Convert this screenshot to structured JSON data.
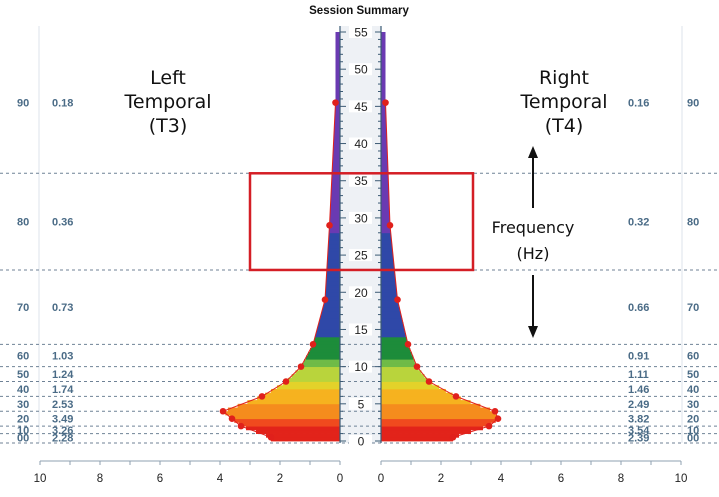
{
  "chart_data": {
    "type": "bar",
    "title": "Session Summary",
    "y_axis": {
      "label": "Frequency (Hz)",
      "range": [
        0,
        55
      ],
      "ticks": [
        0,
        5,
        10,
        15,
        20,
        25,
        30,
        35,
        40,
        45,
        50,
        55
      ]
    },
    "x_axis_left": {
      "range": [
        10,
        0
      ],
      "ticks": [
        10,
        8,
        6,
        4,
        2,
        0
      ]
    },
    "x_axis_right": {
      "range": [
        0,
        10
      ],
      "ticks": [
        0,
        2,
        4,
        6,
        8,
        10
      ]
    },
    "panels": [
      {
        "name_lines": [
          "Left",
          "Temporal",
          "(T3)"
        ],
        "side": "left"
      },
      {
        "name_lines": [
          "Right",
          "Temporal",
          "(T4)"
        ],
        "side": "right"
      }
    ],
    "frequency_bands": [
      {
        "percentile": "00",
        "hz_low": 0,
        "hz_high": 1
      },
      {
        "percentile": "10",
        "hz_low": 1,
        "hz_high": 2
      },
      {
        "percentile": "20",
        "hz_low": 2,
        "hz_high": 4
      },
      {
        "percentile": "30",
        "hz_low": 4,
        "hz_high": 6
      },
      {
        "percentile": "40",
        "hz_low": 6,
        "hz_high": 8
      },
      {
        "percentile": "50",
        "hz_low": 8,
        "hz_high": 10
      },
      {
        "percentile": "60",
        "hz_low": 10,
        "hz_high": 13
      },
      {
        "percentile": "70",
        "hz_low": 13,
        "hz_high": 23
      },
      {
        "percentile": "80",
        "hz_low": 23,
        "hz_high": 36
      },
      {
        "percentile": "90",
        "hz_low": 36,
        "hz_high": 55
      }
    ],
    "series": [
      {
        "name": "Left Temporal (T3)",
        "band_values": [
          "2.28",
          "3.26",
          "3.49",
          "2.53",
          "1.74",
          "1.24",
          "1.03",
          "0.73",
          "0.36",
          "0.18"
        ]
      },
      {
        "name": "Right Temporal (T4)",
        "band_values": [
          "2.39",
          "3.54",
          "3.82",
          "2.49",
          "1.46",
          "1.11",
          "0.91",
          "0.66",
          "0.32",
          "0.16"
        ]
      }
    ],
    "spectrum_points": {
      "hz": [
        0.5,
        2,
        3,
        4,
        6,
        8,
        10,
        13,
        19,
        29,
        45.5
      ],
      "left": [
        2.3,
        3.3,
        3.6,
        3.9,
        2.6,
        1.8,
        1.3,
        0.9,
        0.5,
        0.35,
        0.15
      ],
      "right": [
        2.4,
        3.6,
        3.9,
        3.8,
        2.5,
        1.6,
        1.2,
        0.9,
        0.55,
        0.3,
        0.15
      ]
    },
    "band_colors_by_hz": [
      {
        "hz_low": 0,
        "hz_high": 2,
        "color": "#e2231a"
      },
      {
        "hz_low": 2,
        "hz_high": 3,
        "color": "#f04a1e"
      },
      {
        "hz_low": 3,
        "hz_high": 5,
        "color": "#f58c1d"
      },
      {
        "hz_low": 5,
        "hz_high": 7,
        "color": "#f6b21f"
      },
      {
        "hz_low": 7,
        "hz_high": 8,
        "color": "#e3d22a"
      },
      {
        "hz_low": 8,
        "hz_high": 10,
        "color": "#b9d43c"
      },
      {
        "hz_low": 10,
        "hz_high": 11,
        "color": "#6fbb47"
      },
      {
        "hz_low": 11,
        "hz_high": 14,
        "color": "#1d8c3a"
      },
      {
        "hz_low": 14,
        "hz_high": 28,
        "color": "#2f48a8"
      },
      {
        "hz_low": 28,
        "hz_high": 55,
        "color": "#6a3ab2"
      }
    ],
    "highlight_box_hz": [
      23,
      36
    ],
    "highlight_color": "#d41e25",
    "axis_color": "#3b5a74",
    "percentile_text_color": "#4a6b86",
    "marker_color": "#e0201b",
    "grid": true,
    "annotations": {
      "freq_label_lines": [
        "Frequency",
        "(Hz)"
      ]
    }
  }
}
